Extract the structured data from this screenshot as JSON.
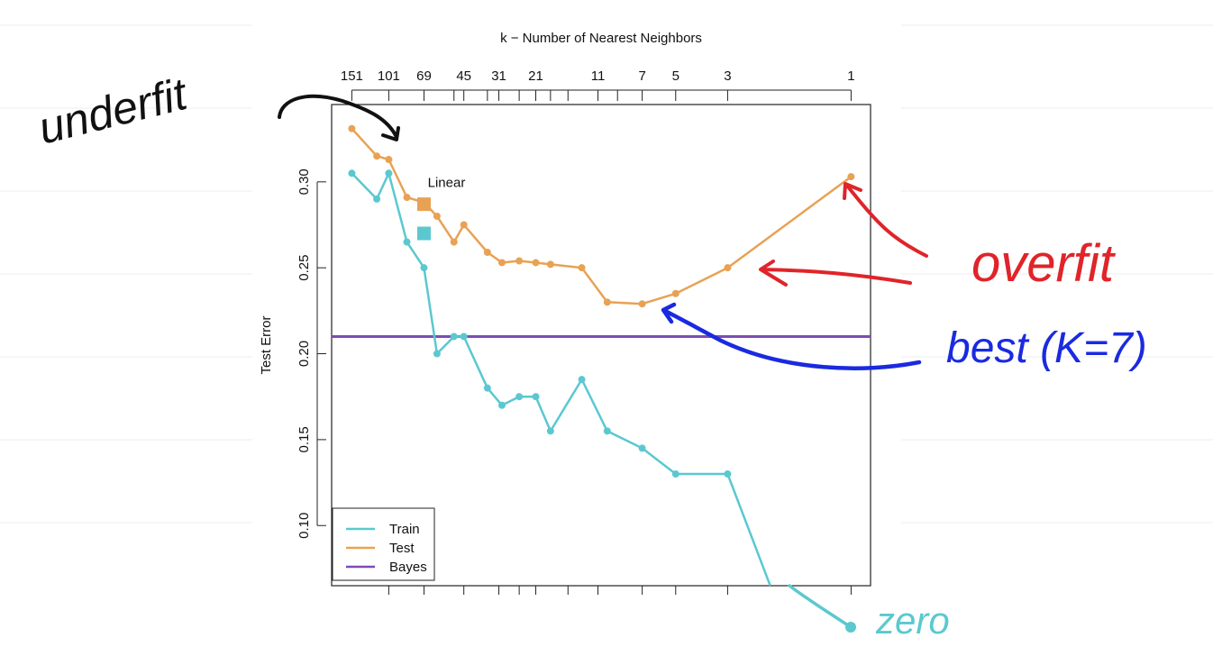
{
  "chart_data": {
    "type": "line",
    "top_axis_title": "k −  Number of Nearest Neighbors",
    "ylabel": "Test Error",
    "ylim": [
      0.065,
      0.345
    ],
    "y_ticks": [
      0.1,
      0.15,
      0.2,
      0.25,
      0.3
    ],
    "y_tick_labels": [
      "0.10",
      "0.15",
      "0.20",
      "0.25",
      "0.30"
    ],
    "x_scale": "reciprocal",
    "x_ticks_k": [
      200,
      151,
      101,
      69,
      50,
      45,
      35,
      31,
      25,
      21,
      18,
      15,
      11,
      9,
      7,
      5,
      3,
      1
    ],
    "x_tick_labels_k": [
      151,
      101,
      69,
      45,
      31,
      21,
      11,
      7,
      5,
      3,
      1
    ],
    "series": [
      {
        "name": "Train",
        "color": "#5bc8d0",
        "k": [
          151,
          115,
          101,
          83,
          69,
          60,
          50,
          45,
          35,
          30,
          25,
          21,
          18,
          13,
          10,
          7,
          5,
          3,
          2
        ],
        "values": [
          0.305,
          0.29,
          0.305,
          0.265,
          0.25,
          0.2,
          0.21,
          0.21,
          0.18,
          0.17,
          0.175,
          0.175,
          0.155,
          0.185,
          0.155,
          0.145,
          0.13,
          0.13,
          0.065
        ]
      },
      {
        "name": "Test",
        "color": "#e8a254",
        "k": [
          151,
          115,
          101,
          83,
          69,
          60,
          50,
          45,
          35,
          30,
          25,
          21,
          18,
          13,
          10,
          7,
          5,
          3,
          1
        ],
        "values": [
          0.331,
          0.315,
          0.313,
          0.291,
          0.288,
          0.28,
          0.265,
          0.275,
          0.259,
          0.253,
          0.254,
          0.253,
          0.252,
          0.25,
          0.23,
          0.229,
          0.235,
          0.25,
          0.303
        ]
      }
    ],
    "bayes": {
      "name": "Bayes",
      "value": 0.21,
      "color": "#7e4cb2"
    },
    "linear": {
      "label": "Linear",
      "k": 69,
      "test": 0.287,
      "train": 0.27
    },
    "legend": {
      "placement": "bottom-left",
      "entries": [
        "Train",
        "Test",
        "Bayes"
      ]
    }
  },
  "annotations": {
    "underfit": "underfit",
    "overfit": "overfit",
    "best": "best (K=7)",
    "zero": "zero"
  }
}
